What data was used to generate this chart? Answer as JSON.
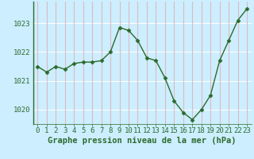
{
  "x": [
    0,
    1,
    2,
    3,
    4,
    5,
    6,
    7,
    8,
    9,
    10,
    11,
    12,
    13,
    14,
    15,
    16,
    17,
    18,
    19,
    20,
    21,
    22,
    23
  ],
  "y": [
    1021.5,
    1021.3,
    1021.5,
    1021.4,
    1021.6,
    1021.65,
    1021.65,
    1021.7,
    1022.0,
    1022.85,
    1022.75,
    1022.4,
    1021.8,
    1021.7,
    1021.1,
    1020.3,
    1019.9,
    1019.65,
    1020.0,
    1020.5,
    1021.7,
    1022.4,
    1023.1,
    1023.5
  ],
  "line_color": "#2d6a2d",
  "marker": "D",
  "marker_size": 2.5,
  "bg_color": "#cceeff",
  "hgrid_color": "#ffffff",
  "vgrid_color": "#ddbbc0",
  "text_color": "#2d6a2d",
  "xlabel": "Graphe pression niveau de la mer (hPa)",
  "ylim": [
    1019.5,
    1023.75
  ],
  "xlim": [
    -0.5,
    23.5
  ],
  "yticks": [
    1020,
    1021,
    1022,
    1023
  ],
  "xtick_labels": [
    "0",
    "1",
    "2",
    "3",
    "4",
    "5",
    "6",
    "7",
    "8",
    "9",
    "10",
    "11",
    "12",
    "13",
    "14",
    "15",
    "16",
    "17",
    "18",
    "19",
    "20",
    "21",
    "22",
    "23"
  ],
  "tick_fontsize": 6.5,
  "xlabel_fontsize": 7.5
}
